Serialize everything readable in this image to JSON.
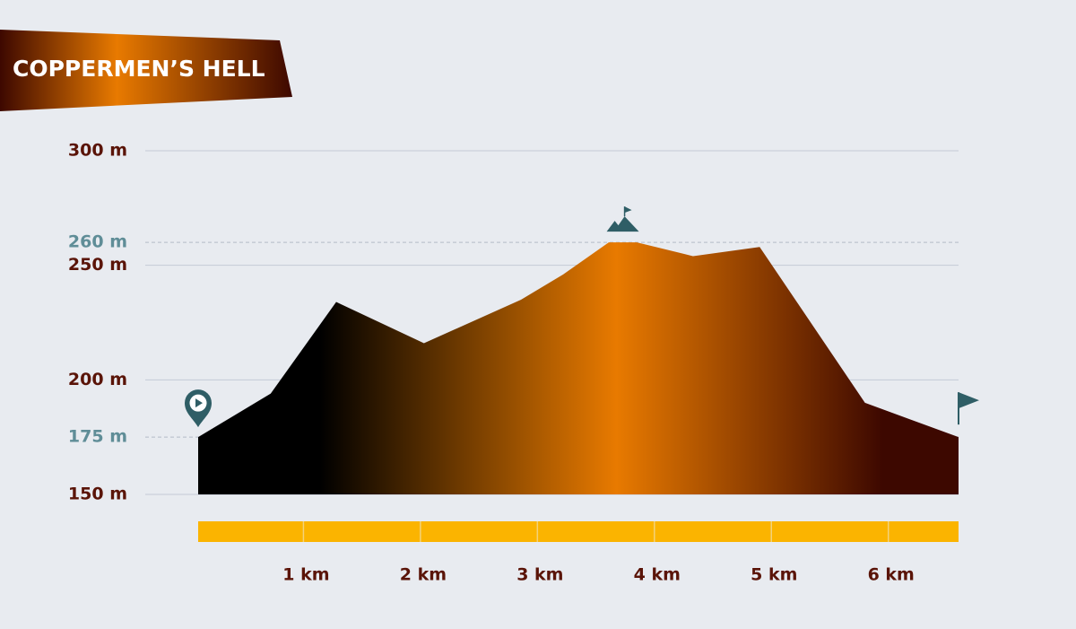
{
  "chart_data": {
    "type": "area",
    "title": "COPPERMEN’S HELL",
    "x": [
      0.1,
      0.72,
      1.28,
      2.03,
      2.86,
      3.22,
      3.61,
      3.85,
      4.33,
      4.9,
      5.8,
      6.6
    ],
    "values": [
      175,
      194,
      234,
      216,
      235,
      246,
      260,
      260,
      254,
      258,
      190,
      175
    ],
    "xlim": [
      0.1,
      6.6
    ],
    "xticks": [
      {
        "value": 1,
        "label": "1 km"
      },
      {
        "value": 2,
        "label": "2 km"
      },
      {
        "value": 3,
        "label": "3 km"
      },
      {
        "value": 4,
        "label": "4 km"
      },
      {
        "value": 5,
        "label": "5 km"
      },
      {
        "value": 6,
        "label": "6 km"
      }
    ],
    "ylim": [
      150,
      300
    ],
    "yticks": [
      {
        "value": 150,
        "label": "150 m"
      },
      {
        "value": 200,
        "label": "200 m"
      },
      {
        "value": 250,
        "label": "250 m"
      },
      {
        "value": 300,
        "label": "300 m"
      }
    ],
    "reference_lines": [
      {
        "value": 175,
        "label": "175 m"
      },
      {
        "value": 260,
        "label": "260 m"
      }
    ],
    "grid": true,
    "gradient": [
      "#000000",
      "#e87a00",
      "#3d0800"
    ],
    "distance_bar_color": "#fbb400"
  }
}
